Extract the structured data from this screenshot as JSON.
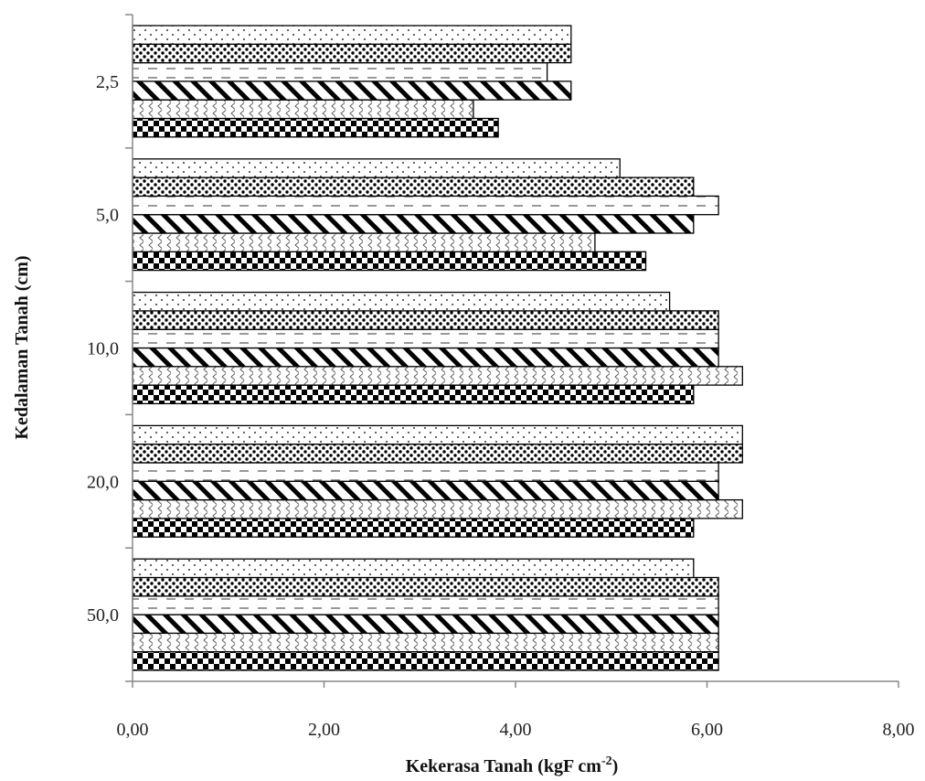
{
  "chart_data": {
    "type": "bar",
    "orientation": "horizontal",
    "title": "",
    "xlabel": "Kekerasa Tanah (kgF cm",
    "xlabel_sup": "-2",
    "xlabel_suffix": ")",
    "ylabel": "Kedalaman Tanah (cm)",
    "categories": [
      "2,5",
      "5,0",
      "10,0",
      "20,0",
      "50,0"
    ],
    "xlim": [
      0,
      8
    ],
    "xticks": [
      "0,00",
      "2,00",
      "4,00",
      "6,00",
      "8,00"
    ],
    "grid": false,
    "legend": "none",
    "series": [
      {
        "pattern": "checker",
        "values": [
          3.82,
          5.36,
          5.86,
          5.86,
          6.12
        ]
      },
      {
        "pattern": "chevron",
        "values": [
          3.56,
          4.83,
          6.37,
          6.37,
          6.12
        ]
      },
      {
        "pattern": "diagonal",
        "values": [
          4.58,
          5.86,
          6.12,
          6.12,
          6.12
        ]
      },
      {
        "pattern": "dash",
        "values": [
          4.33,
          6.12,
          6.12,
          6.12,
          6.12
        ]
      },
      {
        "pattern": "dense-dots",
        "values": [
          4.58,
          5.86,
          6.12,
          6.37,
          6.12
        ]
      },
      {
        "pattern": "sparse-dots",
        "values": [
          4.58,
          5.09,
          5.61,
          6.37,
          5.86
        ]
      }
    ]
  }
}
